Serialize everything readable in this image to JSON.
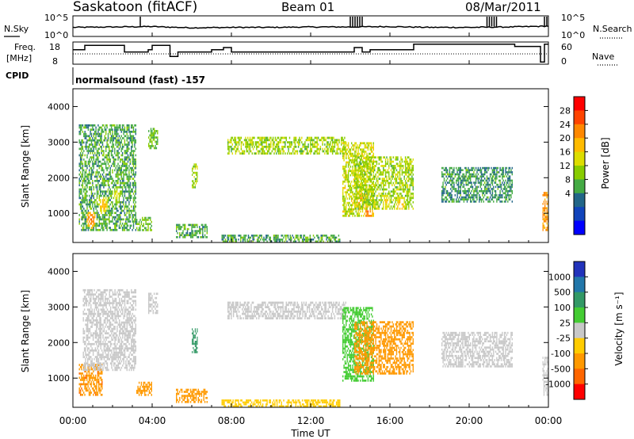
{
  "header": {
    "station": "Saskatoon (fitACF)",
    "beam": "Beam 01",
    "date": "08/Mar/2011"
  },
  "noise_panel": {
    "left_label": "N.Sky",
    "right_label": "N.Search",
    "tick_top": "10^5",
    "tick_bottom": "10^0",
    "tick_top_right": "10^5",
    "tick_bottom_right": "10^0"
  },
  "freq_panel": {
    "left_label_1": "Freq.",
    "left_label_2": "[MHz]",
    "right_label": "Nave",
    "left_ticks": [
      "18",
      "8"
    ],
    "right_ticks": [
      "60",
      "0"
    ],
    "freq_steps": [
      [
        0.0,
        14.5
      ],
      [
        0.6,
        16.5
      ],
      [
        2.6,
        13.5
      ],
      [
        3.8,
        14.5
      ],
      [
        4.0,
        16.5
      ],
      [
        4.9,
        11.5
      ],
      [
        5.3,
        13.5
      ],
      [
        7.0,
        14.5
      ],
      [
        7.6,
        15.5
      ],
      [
        8.0,
        13.5
      ],
      [
        12.0,
        13.5
      ],
      [
        14.2,
        15.5
      ],
      [
        14.6,
        13.5
      ],
      [
        15.0,
        14.5
      ],
      [
        17.2,
        17.0
      ],
      [
        18.5,
        17.0
      ],
      [
        22.3,
        16.0
      ],
      [
        23.6,
        9.0
      ],
      [
        23.8,
        17.0
      ],
      [
        24.0,
        17.0
      ]
    ]
  },
  "cpid": {
    "label": "CPID",
    "text": "normalsound (fast) -157"
  },
  "power_panel": {
    "ylabel": "Slant Range [km]",
    "yticks": [
      "4000",
      "3000",
      "2000",
      "1000"
    ],
    "colorbar_label": "Power [dB]",
    "colorbar_ticks": [
      "28",
      "24",
      "20",
      "16",
      "12",
      "8",
      "4"
    ],
    "colorbar_colors": [
      "#ff0000",
      "#ff4400",
      "#ff8800",
      "#ffbb00",
      "#dddd00",
      "#88cc00",
      "#44aa44",
      "#226688",
      "#1144bb",
      "#0000ff"
    ]
  },
  "velocity_panel": {
    "ylabel": "Slant Range [km]",
    "yticks": [
      "4000",
      "3000",
      "2000",
      "1000"
    ],
    "colorbar_label": "Velocity [m s⁻¹]",
    "colorbar_ticks": [
      "1000",
      "500",
      "100",
      "25",
      "-25",
      "-100",
      "-500",
      "-1000"
    ],
    "colorbar_colors": [
      "#2233bb",
      "#2277aa",
      "#339966",
      "#44cc33",
      "#c8c8c8",
      "#ffcc00",
      "#ff9900",
      "#ff6600",
      "#ff0000"
    ]
  },
  "xaxis": {
    "label": "Time UT",
    "ticks": [
      "00:00",
      "04:00",
      "08:00",
      "12:00",
      "16:00",
      "20:00",
      "00:00"
    ]
  },
  "chart_data": [
    {
      "type": "line",
      "name": "noise",
      "ylim": [
        0,
        5
      ],
      "x": [
        0,
        2,
        4,
        6,
        8,
        10,
        12,
        14,
        16,
        18,
        20,
        22,
        24
      ],
      "y": [
        2.2,
        2.3,
        2.4,
        2.1,
        2.2,
        2.2,
        2.3,
        2.3,
        2.4,
        2.2,
        2.2,
        2.3,
        2.5
      ]
    },
    {
      "type": "heatmap",
      "name": "power",
      "xlim": [
        0,
        24
      ],
      "ylim": [
        180,
        4500
      ],
      "zlim": [
        0,
        30
      ],
      "regions": [
        {
          "x0": 0.3,
          "x1": 3.2,
          "y0": 500,
          "y1": 3500,
          "v": 10,
          "core": [
            [
              0.9,
              800,
              26
            ],
            [
              1.5,
              1200,
              22
            ],
            [
              2.2,
              1500,
              18
            ]
          ]
        },
        {
          "x0": 3.8,
          "x1": 4.3,
          "y0": 2800,
          "y1": 3400,
          "v": 12
        },
        {
          "x0": 3.2,
          "x1": 4.0,
          "y0": 500,
          "y1": 900,
          "v": 12
        },
        {
          "x0": 5.2,
          "x1": 6.8,
          "y0": 300,
          "y1": 700,
          "v": 10
        },
        {
          "x0": 6.0,
          "x1": 6.3,
          "y0": 1700,
          "y1": 2400,
          "v": 14
        },
        {
          "x0": 7.8,
          "x1": 13.8,
          "y0": 2650,
          "y1": 3150,
          "v": 14
        },
        {
          "x0": 13.6,
          "x1": 15.2,
          "y0": 900,
          "y1": 3000,
          "v": 16,
          "core": [
            [
              14.5,
              1300,
              24
            ],
            [
              14.9,
              1000,
              26
            ]
          ]
        },
        {
          "x0": 14.2,
          "x1": 17.2,
          "y0": 1100,
          "y1": 2600,
          "v": 14,
          "core": [
            [
              15.8,
              1300,
              20
            ],
            [
              16.5,
              1200,
              22
            ]
          ]
        },
        {
          "x0": 18.6,
          "x1": 22.2,
          "y0": 1300,
          "y1": 2300,
          "v": 9
        },
        {
          "x0": 23.7,
          "x1": 24.0,
          "y0": 500,
          "y1": 1600,
          "v": 22
        },
        {
          "x0": 7.5,
          "x1": 13.5,
          "y0": 180,
          "y1": 400,
          "v": 10
        }
      ]
    },
    {
      "type": "heatmap",
      "name": "velocity",
      "xlim": [
        0,
        24
      ],
      "ylim": [
        180,
        4500
      ],
      "zlim": [
        -1000,
        1000
      ],
      "regions": [
        {
          "x0": 0.3,
          "x1": 1.5,
          "y0": 500,
          "y1": 1400,
          "v": -400
        },
        {
          "x0": 0.5,
          "x1": 3.2,
          "y0": 1200,
          "y1": 3500,
          "v": 0
        },
        {
          "x0": 3.8,
          "x1": 4.3,
          "y0": 2800,
          "y1": 3400,
          "v": 0
        },
        {
          "x0": 3.2,
          "x1": 4.0,
          "y0": 500,
          "y1": 900,
          "v": -150
        },
        {
          "x0": 5.2,
          "x1": 6.8,
          "y0": 300,
          "y1": 700,
          "v": -150
        },
        {
          "x0": 6.0,
          "x1": 6.3,
          "y0": 1700,
          "y1": 2400,
          "v": 300
        },
        {
          "x0": 7.8,
          "x1": 13.8,
          "y0": 2650,
          "y1": 3150,
          "v": 0
        },
        {
          "x0": 13.6,
          "x1": 15.2,
          "y0": 900,
          "y1": 3000,
          "v": 60
        },
        {
          "x0": 14.2,
          "x1": 17.2,
          "y0": 1100,
          "y1": 2600,
          "v": -150
        },
        {
          "x0": 18.6,
          "x1": 22.2,
          "y0": 1300,
          "y1": 2300,
          "v": 0
        },
        {
          "x0": 23.7,
          "x1": 24.0,
          "y0": 500,
          "y1": 1600,
          "v": 0
        },
        {
          "x0": 7.5,
          "x1": 13.5,
          "y0": 180,
          "y1": 400,
          "v": -60
        }
      ]
    }
  ]
}
